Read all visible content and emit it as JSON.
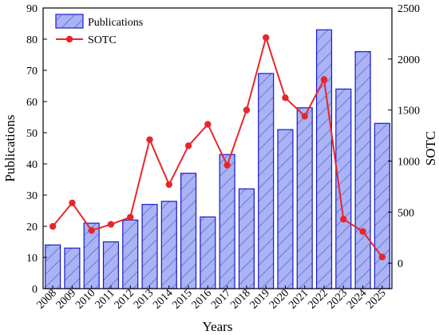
{
  "chart_data": {
    "type": "bar",
    "categories": [
      "2008",
      "2009",
      "2010",
      "2011",
      "2012",
      "2013",
      "2014",
      "2015",
      "2016",
      "2017",
      "2018",
      "2019",
      "2020",
      "2021",
      "2022",
      "2023",
      "2024",
      "2025"
    ],
    "series": [
      {
        "name": "Publications",
        "type": "bar",
        "axis": "left",
        "values": [
          14,
          13,
          21,
          15,
          22,
          27,
          28,
          37,
          23,
          43,
          32,
          69,
          51,
          58,
          83,
          64,
          76,
          53
        ],
        "color": "#a9b3f5",
        "edge_color": "#1a1acc"
      },
      {
        "name": "SOTC",
        "type": "line",
        "axis": "right",
        "values": [
          360,
          590,
          320,
          380,
          450,
          1210,
          770,
          1150,
          1360,
          960,
          1500,
          2210,
          1620,
          1440,
          1800,
          430,
          310,
          60
        ],
        "color": "#e8262a"
      }
    ],
    "xlabel": "Years",
    "ylabel": "Publications",
    "y2label": "SOTC",
    "ylim": [
      0,
      90
    ],
    "yticks": [
      0,
      10,
      20,
      30,
      40,
      50,
      60,
      70,
      80,
      90
    ],
    "y2lim": [
      -250,
      2500
    ],
    "y2ticks": [
      0,
      500,
      1000,
      1500,
      2000,
      2500
    ],
    "legend_position": "top-left",
    "grid": false
  }
}
